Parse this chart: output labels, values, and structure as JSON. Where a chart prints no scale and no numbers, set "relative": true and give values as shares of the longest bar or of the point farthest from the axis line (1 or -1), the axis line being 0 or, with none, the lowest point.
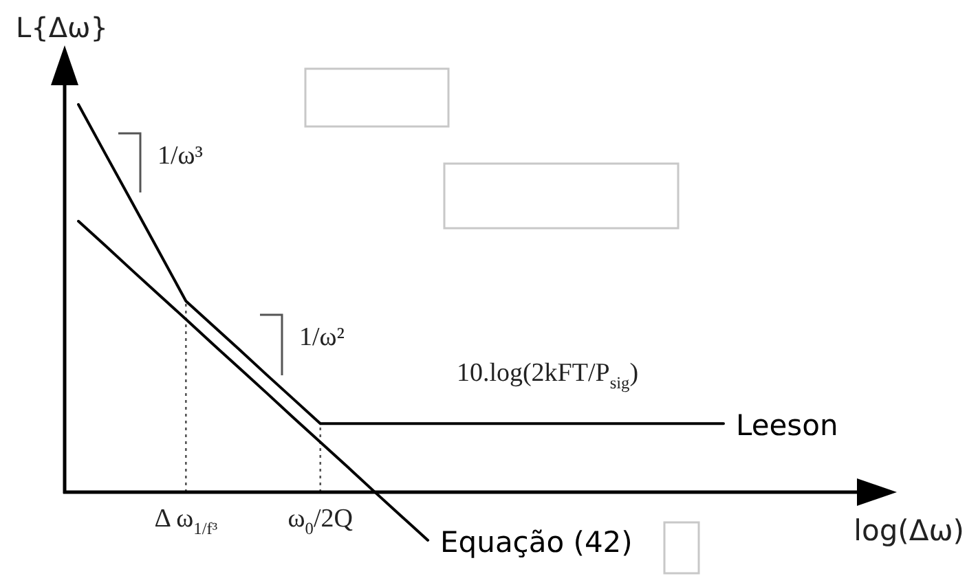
{
  "chart_data": {
    "type": "line",
    "xlabel": "log(Δω)",
    "ylabel": "L{Δω}",
    "relative": true,
    "categories": [
      null,
      null,
      null,
      null,
      "Δ ω$_{1/f³}$",
      null,
      null,
      null,
      null,
      "ω$_{0}$/2Q",
      null,
      null,
      null,
      null,
      null,
      null,
      null,
      null,
      null,
      null,
      null,
      null,
      null,
      null,
      null
    ],
    "series": [
      {
        "name": "Leeson",
        "color": "#000000",
        "values": [
          1,
          0.873,
          0.747,
          0.62,
          0.493,
          0.43,
          0.367,
          0.303,
          0.24,
          0.177,
          0.177,
          0.177,
          0.177,
          0.177,
          0.177,
          0.177,
          0.177,
          0.177,
          0.177,
          0.177,
          0.177,
          0.177,
          0.177,
          0.177,
          0.177
        ]
      },
      {
        "name": "Equação (42)",
        "color": "#000000",
        "values": [
          0.699,
          0.636,
          0.572,
          0.509,
          0.446,
          0.382,
          0.319,
          0.256,
          0.192,
          0.129,
          0.066,
          0.002,
          -0.061,
          -0.124,
          null,
          null,
          null,
          null,
          null,
          null,
          null,
          null,
          null,
          null,
          null
        ]
      }
    ],
    "ref_lines": [
      {
        "axis": "x",
        "value": "Δ ω$_{1/f³}$",
        "color": "#555555",
        "line_style": "dotted"
      },
      {
        "axis": "x",
        "value": "ω$_{0}$/2Q",
        "color": "#555555",
        "line_style": "dotted"
      }
    ],
    "annotations": [
      "1/ω³",
      "1/ω²",
      "10.log(2kFT/P$_{sig}$)"
    ]
  }
}
